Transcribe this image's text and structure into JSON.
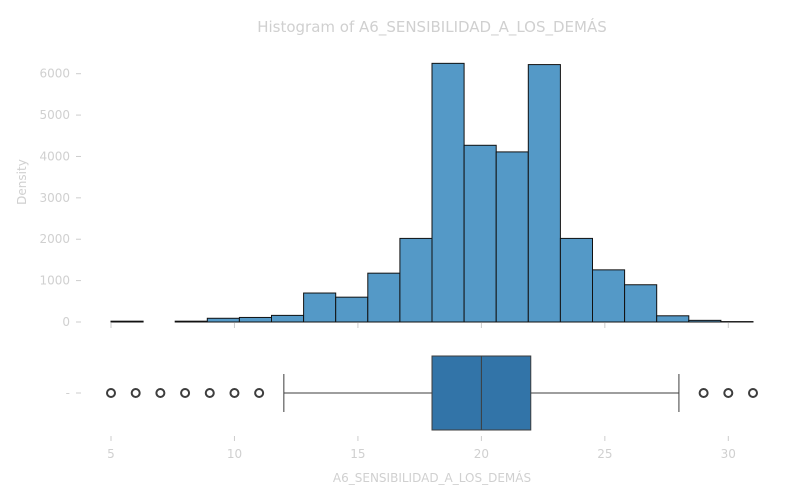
{
  "chart_data": {
    "type": "histogram",
    "title": "Histogram of A6_SENSIBILIDAD_A_LOS_DEMÁS",
    "xlabel": "A6_SENSIBILIDAD_A_LOS_DEMÁS",
    "ylabel": "Density",
    "xlim": [
      5,
      31
    ],
    "ylim": [
      0,
      6500
    ],
    "x_ticks": [
      5,
      10,
      15,
      20,
      25,
      30
    ],
    "y_ticks": [
      0,
      1000,
      2000,
      3000,
      4000,
      5000,
      6000
    ],
    "box_y_tick": "-",
    "bar_color": "#5499c7",
    "bins": [
      {
        "start": 5.0,
        "end": 6.3,
        "value": 20
      },
      {
        "start": 6.3,
        "end": 7.6,
        "value": 0
      },
      {
        "start": 7.6,
        "end": 8.9,
        "value": 20
      },
      {
        "start": 8.9,
        "end": 10.2,
        "value": 90
      },
      {
        "start": 10.2,
        "end": 11.5,
        "value": 110
      },
      {
        "start": 11.5,
        "end": 12.8,
        "value": 160
      },
      {
        "start": 12.8,
        "end": 14.1,
        "value": 700
      },
      {
        "start": 14.1,
        "end": 15.4,
        "value": 600
      },
      {
        "start": 15.4,
        "end": 16.7,
        "value": 1180
      },
      {
        "start": 16.7,
        "end": 18.0,
        "value": 2020
      },
      {
        "start": 18.0,
        "end": 19.3,
        "value": 6250
      },
      {
        "start": 19.3,
        "end": 20.6,
        "value": 4270
      },
      {
        "start": 20.6,
        "end": 21.9,
        "value": 4110
      },
      {
        "start": 21.9,
        "end": 23.2,
        "value": 6220
      },
      {
        "start": 23.2,
        "end": 24.5,
        "value": 2020
      },
      {
        "start": 24.5,
        "end": 25.8,
        "value": 1260
      },
      {
        "start": 25.8,
        "end": 27.1,
        "value": 900
      },
      {
        "start": 27.1,
        "end": 28.4,
        "value": 150
      },
      {
        "start": 28.4,
        "end": 29.7,
        "value": 40
      },
      {
        "start": 29.7,
        "end": 31.0,
        "value": 10
      }
    ],
    "boxplot": {
      "min": 12,
      "q1": 18,
      "median": 20,
      "q3": 22,
      "max": 28,
      "outliers": [
        5,
        6,
        7,
        8,
        9,
        10,
        11,
        29,
        30,
        31
      ],
      "color": "#3274a8"
    }
  }
}
